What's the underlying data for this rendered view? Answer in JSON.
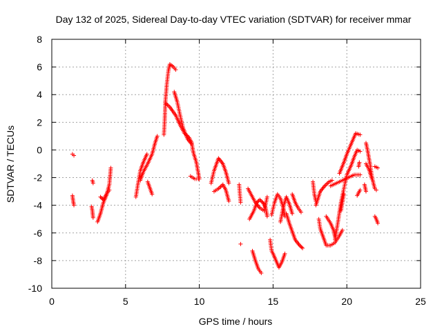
{
  "chart_data": {
    "type": "scatter",
    "title": "Day 132 of 2025, Sidereal Day-to-day VTEC variation (SDTVAR) for receiver mmar",
    "xlabel": "GPS time / hours",
    "ylabel": "SDTVAR / TECUs",
    "xlim": [
      0,
      25
    ],
    "ylim": [
      -10,
      8
    ],
    "xticks": [
      0,
      5,
      10,
      15,
      20,
      25
    ],
    "yticks": [
      -10,
      -8,
      -6,
      -4,
      -2,
      0,
      2,
      4,
      6,
      8
    ],
    "grid": true,
    "marker": "+",
    "color": "#ff0000",
    "series": [
      {
        "name": "tracks",
        "segments": [
          [
            [
              1.4,
              -0.3
            ],
            [
              1.5,
              -0.4
            ]
          ],
          [
            [
              1.4,
              -3.3
            ],
            [
              1.45,
              -3.7
            ],
            [
              1.5,
              -4.0
            ]
          ],
          [
            [
              2.75,
              -2.2
            ],
            [
              2.8,
              -2.4
            ]
          ],
          [
            [
              2.7,
              -4.1
            ],
            [
              2.75,
              -4.4
            ],
            [
              2.8,
              -4.9
            ]
          ],
          [
            [
              3.1,
              -5.2
            ],
            [
              3.3,
              -4.6
            ],
            [
              3.5,
              -3.8
            ],
            [
              3.7,
              -3.3
            ],
            [
              3.9,
              -2.5
            ],
            [
              4.0,
              -1.3
            ]
          ],
          [
            [
              3.3,
              -3.4
            ],
            [
              3.5,
              -3.6
            ],
            [
              3.7,
              -3.2
            ],
            [
              3.9,
              -2.9
            ]
          ],
          [
            [
              5.7,
              -3.4
            ],
            [
              5.85,
              -2.4
            ],
            [
              6.0,
              -1.5
            ],
            [
              6.2,
              -0.9
            ],
            [
              6.45,
              -0.3
            ]
          ],
          [
            [
              6.0,
              -2.2
            ],
            [
              6.2,
              -1.6
            ],
            [
              6.5,
              -1.0
            ],
            [
              6.8,
              -0.3
            ],
            [
              7.0,
              0.5
            ],
            [
              7.15,
              1.0
            ]
          ],
          [
            [
              6.5,
              -2.3
            ],
            [
              6.7,
              -2.9
            ],
            [
              6.8,
              -3.2
            ]
          ],
          [
            [
              7.6,
              1.1
            ],
            [
              7.65,
              2.0
            ],
            [
              7.7,
              3.5
            ],
            [
              7.8,
              4.8
            ],
            [
              7.9,
              5.7
            ],
            [
              8.0,
              6.2
            ],
            [
              8.25,
              6.0
            ],
            [
              8.4,
              5.8
            ]
          ],
          [
            [
              7.7,
              3.4
            ],
            [
              8.0,
              3.1
            ],
            [
              8.4,
              2.5
            ],
            [
              8.7,
              1.8
            ],
            [
              9.0,
              1.2
            ],
            [
              9.3,
              0.9
            ],
            [
              9.5,
              0.5
            ]
          ],
          [
            [
              8.3,
              4.2
            ],
            [
              8.5,
              3.5
            ],
            [
              8.7,
              2.5
            ],
            [
              8.9,
              1.6
            ],
            [
              9.2,
              0.8
            ],
            [
              9.5,
              0.4
            ],
            [
              9.6,
              -0.2
            ],
            [
              9.8,
              -0.9
            ],
            [
              9.9,
              -1.5
            ],
            [
              10.0,
              -2.1
            ]
          ],
          [
            [
              9.4,
              -1.9
            ],
            [
              9.7,
              -2.1
            ],
            [
              9.95,
              -2.1
            ]
          ],
          [
            [
              10.8,
              -2.4
            ],
            [
              11.0,
              -1.5
            ],
            [
              11.3,
              -0.6
            ],
            [
              11.6,
              -1.0
            ],
            [
              11.8,
              -1.6
            ],
            [
              12.0,
              -2.4
            ]
          ],
          [
            [
              11.0,
              -3.0
            ],
            [
              11.3,
              -2.8
            ],
            [
              11.6,
              -2.5
            ],
            [
              11.8,
              -2.9
            ],
            [
              12.0,
              -3.7
            ]
          ],
          [
            [
              12.7,
              -2.5
            ],
            [
              12.75,
              -3.2
            ],
            [
              12.8,
              -3.8
            ]
          ],
          [
            [
              12.8,
              -6.8
            ]
          ],
          [
            [
              13.3,
              -2.8
            ],
            [
              13.5,
              -3.2
            ],
            [
              13.8,
              -3.8
            ],
            [
              14.1,
              -4.2
            ],
            [
              14.4,
              -4.4
            ],
            [
              14.6,
              -3.4
            ]
          ],
          [
            [
              13.4,
              -5.0
            ],
            [
              13.7,
              -4.4
            ],
            [
              13.9,
              -3.8
            ],
            [
              14.1,
              -3.6
            ],
            [
              14.3,
              -3.8
            ],
            [
              14.5,
              -4.2
            ],
            [
              14.6,
              -4.8
            ]
          ],
          [
            [
              13.6,
              -7.3
            ],
            [
              13.8,
              -8.0
            ],
            [
              14.0,
              -8.6
            ],
            [
              14.2,
              -8.9
            ]
          ],
          [
            [
              14.8,
              -6.5
            ],
            [
              14.9,
              -7.3
            ],
            [
              15.0,
              -7.5
            ],
            [
              15.2,
              -8.0
            ],
            [
              15.4,
              -8.5
            ],
            [
              15.6,
              -8.1
            ],
            [
              15.8,
              -7.5
            ]
          ],
          [
            [
              14.9,
              -4.7
            ],
            [
              15.1,
              -3.8
            ],
            [
              15.3,
              -3.2
            ],
            [
              15.5,
              -3.5
            ],
            [
              15.7,
              -4.2
            ],
            [
              15.8,
              -4.8
            ]
          ],
          [
            [
              15.5,
              -5.2
            ],
            [
              15.7,
              -4.1
            ],
            [
              15.9,
              -3.4
            ],
            [
              16.1,
              -3.9
            ],
            [
              16.3,
              -4.6
            ]
          ],
          [
            [
              15.9,
              -4.6
            ],
            [
              16.1,
              -5.3
            ],
            [
              16.3,
              -5.9
            ],
            [
              16.5,
              -6.5
            ],
            [
              16.8,
              -6.9
            ],
            [
              17.0,
              -7.1
            ]
          ],
          [
            [
              16.3,
              -3.2
            ],
            [
              16.5,
              -3.8
            ],
            [
              16.7,
              -4.2
            ],
            [
              16.9,
              -4.5
            ]
          ],
          [
            [
              17.7,
              -2.3
            ],
            [
              17.8,
              -3.2
            ],
            [
              17.9,
              -3.7
            ]
          ],
          [
            [
              17.9,
              -4.0
            ],
            [
              18.2,
              -3.0
            ],
            [
              18.5,
              -2.6
            ],
            [
              18.8,
              -2.3
            ],
            [
              19.0,
              -2.2
            ]
          ],
          [
            [
              18.1,
              -5.0
            ],
            [
              18.2,
              -5.7
            ],
            [
              18.4,
              -6.3
            ],
            [
              18.6,
              -6.9
            ],
            [
              18.9,
              -6.9
            ],
            [
              19.2,
              -6.7
            ],
            [
              19.5,
              -6.2
            ],
            [
              19.7,
              -5.8
            ]
          ],
          [
            [
              18.6,
              -4.8
            ],
            [
              18.9,
              -5.3
            ],
            [
              19.1,
              -5.8
            ],
            [
              19.2,
              -6.3
            ]
          ],
          [
            [
              19.2,
              -6.5
            ],
            [
              19.4,
              -5.2
            ],
            [
              19.6,
              -3.8
            ],
            [
              19.8,
              -2.8
            ],
            [
              20.0,
              -1.8
            ],
            [
              20.3,
              -1.1
            ],
            [
              20.5,
              -0.5
            ],
            [
              20.7,
              0.0
            ],
            [
              20.9,
              -0.1
            ]
          ],
          [
            [
              18.9,
              -2.6
            ],
            [
              19.3,
              -2.4
            ],
            [
              19.7,
              -2.2
            ],
            [
              20.1,
              -2.0
            ],
            [
              20.5,
              -1.8
            ],
            [
              20.9,
              -1.8
            ]
          ],
          [
            [
              19.5,
              -1.7
            ],
            [
              19.8,
              -0.9
            ],
            [
              20.0,
              -0.3
            ],
            [
              20.2,
              0.2
            ],
            [
              20.4,
              0.7
            ],
            [
              20.6,
              1.2
            ],
            [
              20.9,
              1.1
            ]
          ],
          [
            [
              19.6,
              -4.4
            ],
            [
              19.8,
              -3.2
            ]
          ],
          [
            [
              20.7,
              -3.3
            ],
            [
              20.9,
              -2.9
            ]
          ],
          [
            [
              20.8,
              -1.2
            ],
            [
              20.85,
              -0.9
            ]
          ],
          [
            [
              21.3,
              0.5
            ],
            [
              21.4,
              0.0
            ],
            [
              21.5,
              -0.6
            ],
            [
              21.6,
              -1.2
            ],
            [
              21.7,
              -1.9
            ],
            [
              21.8,
              -2.4
            ],
            [
              21.9,
              -2.8
            ],
            [
              22.0,
              -2.9
            ]
          ],
          [
            [
              21.3,
              -1.0
            ],
            [
              21.5,
              -1.4
            ],
            [
              21.7,
              -2.1
            ]
          ],
          [
            [
              21.9,
              -1.2
            ],
            [
              22.1,
              -1.3
            ]
          ],
          [
            [
              21.9,
              -4.8
            ],
            [
              22.0,
              -5.0
            ],
            [
              22.1,
              -5.3
            ]
          ],
          [
            [
              21.2,
              -2.5
            ],
            [
              21.3,
              -3.0
            ]
          ]
        ]
      }
    ]
  }
}
